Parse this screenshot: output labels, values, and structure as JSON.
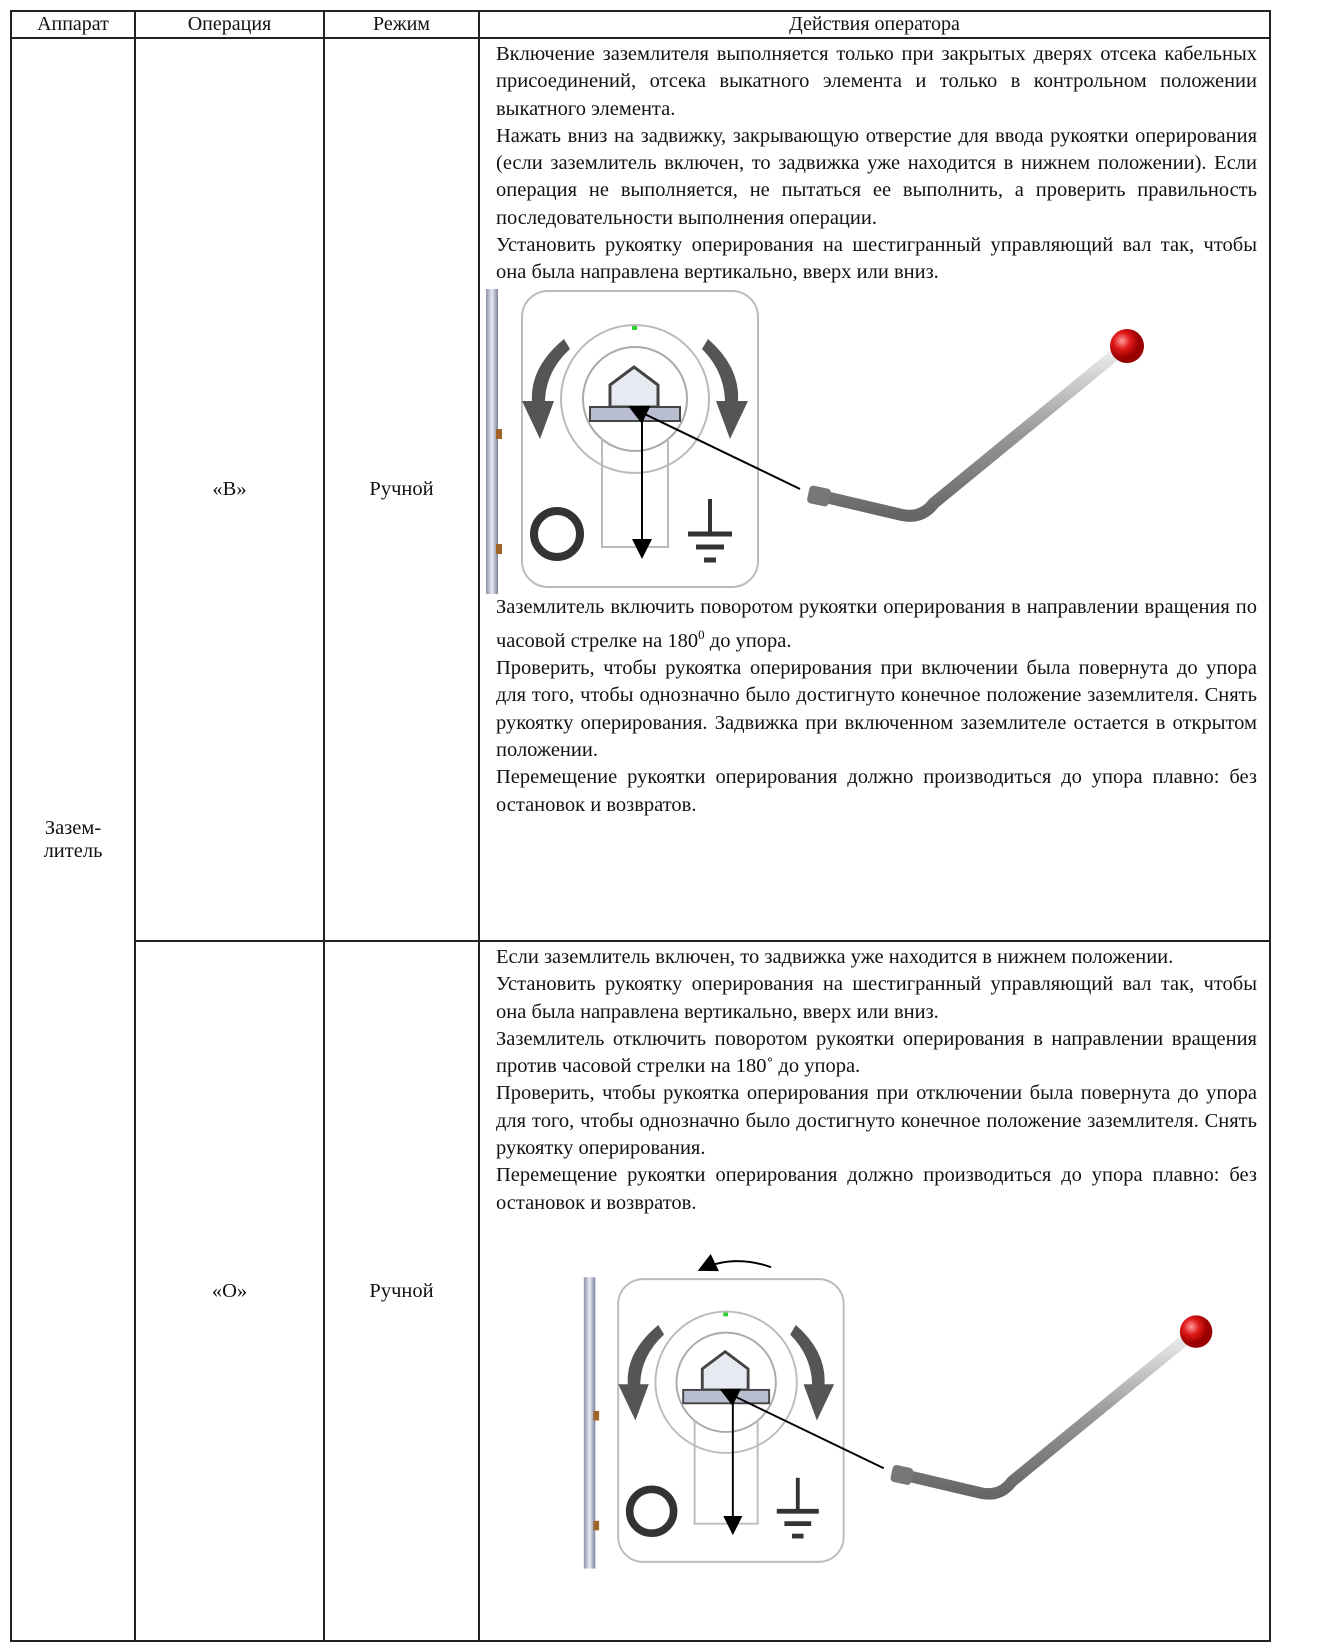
{
  "table": {
    "header": [
      "Аппарат",
      "Операция",
      "Режим",
      "Действия оператора"
    ],
    "apparatus": "Зазем-\nлитель",
    "rows": [
      {
        "operation": "«В»",
        "mode": "Ручной",
        "before": [
          "Включение заземлителя выполняется только при закрытых дверях отсека кабельных присоединений, отсека выкатного элемента и только в контрольном положении выкатного элемента.",
          "Нажать вниз на задвижку, закрывающую отверстие для ввода рукоятки оперирования (если заземлитель включен, то задвижка уже находится в нижнем положении). Если операция не выполняется, не пытаться ее выполнить, а проверить правильность последовательности выполнения операции.",
          "Установить рукоятку оперирования на шестигранный управляющий вал так, чтобы она была направлена вертикально, вверх или вниз."
        ],
        "rotate": {
          "before": "Заземлитель включить поворотом рукоятки оперирования в направлении вращения по часовой стрелке на 180",
          "sup": "0",
          "after": " до упора."
        },
        "after": [
          "Проверить, чтобы рукоятка оперирования при включении была повернута до упора для того, чтобы однозначно было достигнуто конечное положение заземлителя. Снять рукоятку оперирования. Задвижка при включенном заземлителе остается в открытом положении.",
          "Перемещение рукоятки оперирования должно производиться до упора плавно: без остановок и возвратов."
        ]
      },
      {
        "operation": "«О»",
        "mode": "Ручной",
        "before": [
          "Если заземлитель включен, то задвижка уже находится в нижнем положении.",
          "Установить рукоятку оперирования на шестигранный управляющий вал так, чтобы она была направлена вертикально, вверх или вниз.",
          "Заземлитель отключить поворотом рукоятки оперирования в направлении вращения против часовой стрелки на 180˚ до упора.",
          "Проверить, чтобы рукоятка оперирования при отключении была повернута до упора для того, чтобы однозначно было достигнуто конечное положение заземлителя. Снять рукоятку оперирования.",
          "Перемещение рукоятки оперирования должно производиться до упора плавно: без остановок и возвратов."
        ]
      }
    ]
  }
}
